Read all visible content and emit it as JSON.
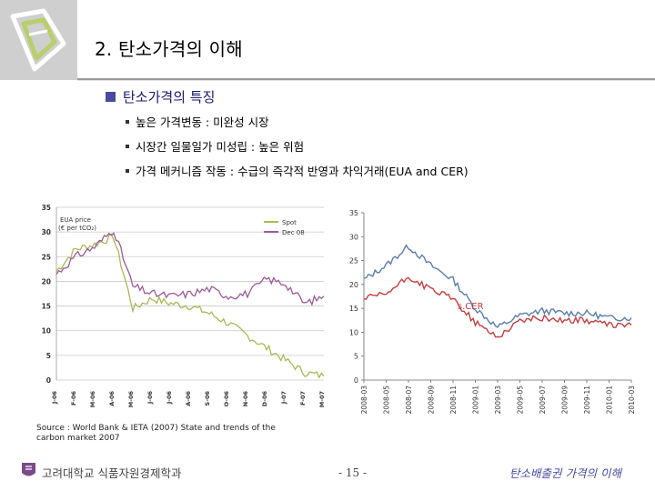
{
  "slide": {
    "title": "2. 탄소가격의 이해",
    "section": "탄소가격의 특징",
    "bullets": [
      "높은 가격변동 : 미완성 시장",
      "시장간 일물일가 미성립 : 높은 위험",
      "가격 메커니즘 작동 : 수급의 즉각적 반영과 차익거래(EUA and CER)"
    ],
    "source_line1": "Source : World Bank & IETA (2007) State and trends of the",
    "source_line2": "carbon market 2007",
    "footer_left": "고려대학교 식품자원경제학과",
    "footer_page": "- 15 -",
    "footer_right": "탄소배출권 가격의 이해"
  },
  "chart_data": [
    {
      "type": "line",
      "title": "",
      "ylabel": "EUA price (€ per tCO₂)",
      "ylim": [
        0,
        35
      ],
      "yticks": [
        0,
        5,
        10,
        15,
        20,
        25,
        30,
        35
      ],
      "categories": [
        "J-06",
        "F-06",
        "M-06",
        "A-06",
        "M-06",
        "J-06",
        "J-06",
        "A-06",
        "S-06",
        "O-06",
        "N-06",
        "D-06",
        "J-07",
        "F-07",
        "M-07"
      ],
      "grid": true,
      "legend": "top-right",
      "colors": {
        "spot": "#a9b85a",
        "dec08": "#9a5a9a"
      },
      "series": [
        {
          "name": "Spot",
          "values": [
            22.0,
            26.5,
            27.5,
            29.0,
            14.5,
            16.5,
            15.5,
            15.0,
            13.5,
            11.5,
            9.0,
            6.5,
            4.0,
            1.5,
            0.8
          ]
        },
        {
          "name": "Dec 08",
          "values": [
            21.5,
            25.0,
            27.0,
            30.5,
            19.0,
            17.5,
            17.0,
            17.5,
            18.5,
            17.0,
            17.5,
            20.5,
            19.5,
            15.5,
            17.0
          ]
        }
      ]
    },
    {
      "type": "line",
      "title": "",
      "ylim": [
        0,
        35
      ],
      "yticks": [
        0,
        5,
        10,
        15,
        20,
        25,
        30,
        35
      ],
      "categories": [
        "2008-03",
        "2008-05",
        "2008-07",
        "2008-09",
        "2008-11",
        "2009-01",
        "2009-03",
        "2009-05",
        "2009-07",
        "2009-09",
        "2009-11",
        "2010-01",
        "2010-03"
      ],
      "grid": false,
      "colors": {
        "eua": "#5a7ea8",
        "cer": "#c04040"
      },
      "annotations": [
        "s.CER"
      ],
      "series": [
        {
          "values": [
            21.0,
            24.0,
            28.0,
            24.0,
            21.0,
            15.0,
            11.0,
            13.5,
            14.5,
            14.0,
            14.0,
            13.0,
            13.0
          ]
        },
        {
          "values": [
            17.0,
            18.0,
            21.5,
            19.0,
            17.0,
            12.0,
            9.0,
            12.5,
            13.0,
            12.5,
            12.5,
            11.5,
            11.5
          ]
        }
      ]
    }
  ]
}
